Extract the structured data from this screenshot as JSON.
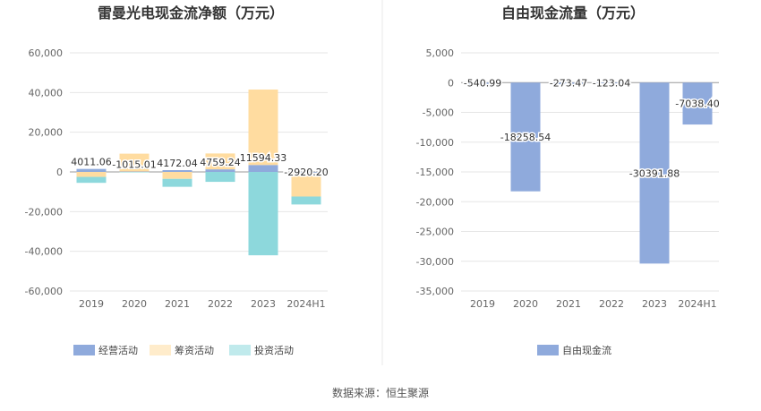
{
  "source": "数据来源：恒生聚源",
  "colors": {
    "operating": "#8faadc",
    "financing": "#ffdca0",
    "investing": "#8dd8dc",
    "fcf": "#8faadc"
  },
  "chart_data": [
    {
      "type": "bar",
      "stacked": true,
      "title": "雷曼光电现金流净额（万元）",
      "categories": [
        "2019",
        "2020",
        "2021",
        "2022",
        "2023",
        "2024H1"
      ],
      "ylim": [
        -60000,
        65000
      ],
      "yticks": [
        60000,
        40000,
        20000,
        0,
        -20000,
        -40000,
        -60000
      ],
      "ytick_labels": [
        "60,000",
        "40,000",
        "20,000",
        "0",
        "-20,000",
        "-40,000",
        "-60,000"
      ],
      "series": [
        {
          "name": "经营活动",
          "values": [
            1500,
            200,
            900,
            1300,
            3500,
            -400
          ]
        },
        {
          "name": "筹资活动",
          "values": [
            -2500,
            9000,
            -3500,
            8000,
            38000,
            -12000
          ]
        },
        {
          "name": "投资活动",
          "values": [
            -3000,
            -200,
            -4000,
            -5000,
            -42000,
            -4000
          ]
        }
      ],
      "value_labels": [
        "4011.06",
        "-1015.01",
        "4172.04",
        "4759.24",
        "11594.33",
        "-2920.20"
      ],
      "legend": [
        "经营活动",
        "筹资活动",
        "投资活动"
      ],
      "legend_position": "bottom-left",
      "grid": true
    },
    {
      "type": "bar",
      "title": "自由现金流量（万元）",
      "categories": [
        "2019",
        "2020",
        "2021",
        "2022",
        "2023",
        "2024H1"
      ],
      "ylim": [
        -35000,
        5000
      ],
      "yticks": [
        5000,
        0,
        -5000,
        -10000,
        -15000,
        -20000,
        -25000,
        -30000,
        -35000
      ],
      "ytick_labels": [
        "5,000",
        "0",
        "-5,000",
        "-10,000",
        "-15,000",
        "-20,000",
        "-25,000",
        "-30,000",
        "-35,000"
      ],
      "series": [
        {
          "name": "自由现金流",
          "values": [
            -540.99,
            -18258.54,
            -273.47,
            -123.04,
            -30391.88,
            -7038.4
          ]
        }
      ],
      "value_labels": [
        "-540.99",
        "-18258.54",
        "-273.47",
        "-123.04",
        "-30391.88",
        "-7038.40"
      ],
      "legend": [
        "自由现金流"
      ],
      "legend_position": "bottom-center",
      "grid": true
    }
  ]
}
